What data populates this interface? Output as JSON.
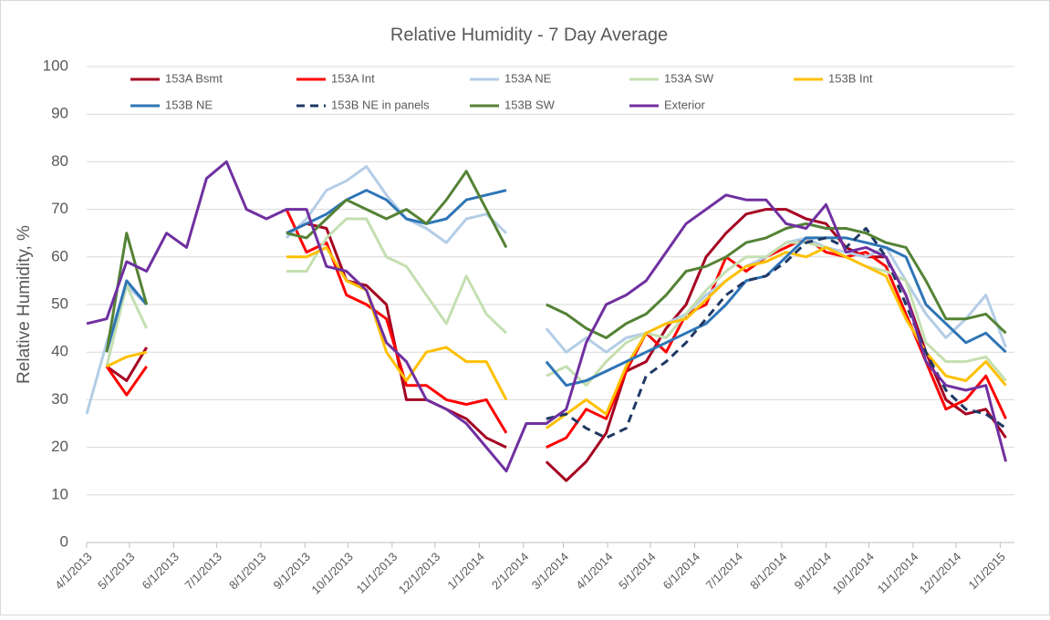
{
  "chart_data": {
    "type": "line",
    "title": "Relative Humidity - 7 Day Average",
    "ylabel": "Relative Humidity, %",
    "xlim": [
      "4/1/2013",
      "1/11/2015"
    ],
    "xticks": [
      "4/1/2013",
      "5/1/2013",
      "6/1/2013",
      "7/1/2013",
      "8/1/2013",
      "9/1/2013",
      "10/1/2013",
      "11/1/2013",
      "12/1/2013",
      "1/1/2014",
      "2/1/2014",
      "3/1/2014",
      "4/1/2014",
      "5/1/2014",
      "6/1/2014",
      "7/1/2014",
      "8/1/2014",
      "9/1/2014",
      "10/1/2014",
      "11/1/2014",
      "12/1/2014",
      "1/1/2015"
    ],
    "ylim": [
      0,
      100
    ],
    "yticks": [
      0,
      10,
      20,
      30,
      40,
      50,
      60,
      70,
      80,
      90,
      100
    ],
    "grid": true,
    "legend": "top",
    "x": [
      "4/1/2013",
      "4/15/2013",
      "4/29/2013",
      "5/13/2013",
      "5/27/2013",
      "6/10/2013",
      "6/24/2013",
      "7/8/2013",
      "7/22/2013",
      "8/5/2013",
      "8/19/2013",
      "9/2/2013",
      "9/16/2013",
      "9/30/2013",
      "10/14/2013",
      "10/28/2013",
      "11/11/2013",
      "11/25/2013",
      "12/9/2013",
      "12/23/2013",
      "1/6/2014",
      "1/20/2014",
      "2/3/2014",
      "2/17/2014",
      "3/3/2014",
      "3/17/2014",
      "3/31/2014",
      "4/14/2014",
      "4/28/2014",
      "5/12/2014",
      "5/26/2014",
      "6/9/2014",
      "6/23/2014",
      "7/7/2014",
      "7/21/2014",
      "8/4/2014",
      "8/18/2014",
      "9/1/2014",
      "9/15/2014",
      "9/29/2014",
      "10/13/2014",
      "10/27/2014",
      "11/10/2014",
      "11/24/2014",
      "12/8/2014",
      "12/22/2014",
      "1/5/2015"
    ],
    "series": [
      {
        "name": "153A Bsmt",
        "color": "#a50021",
        "values": [
          null,
          37,
          34,
          41,
          null,
          null,
          null,
          null,
          null,
          null,
          65,
          67,
          66,
          55,
          54,
          50,
          30,
          30,
          28,
          26,
          22,
          20,
          null,
          17,
          13,
          17,
          23,
          36,
          38,
          45,
          50,
          60,
          65,
          69,
          70,
          70,
          68,
          67,
          62,
          60,
          60,
          52,
          40,
          30,
          27,
          28,
          22
        ]
      },
      {
        "name": "153A Int",
        "color": "#ff0000",
        "values": [
          null,
          37,
          31,
          37,
          null,
          null,
          null,
          null,
          null,
          null,
          70,
          61,
          63,
          52,
          50,
          47,
          33,
          33,
          30,
          29,
          30,
          23,
          null,
          20,
          22,
          28,
          26,
          36,
          44,
          40,
          48,
          50,
          60,
          57,
          60,
          62,
          64,
          61,
          60,
          61,
          58,
          48,
          38,
          28,
          30,
          35,
          26
        ]
      },
      {
        "name": "153A NE",
        "color": "#b4cde6",
        "values": [
          27,
          42,
          54,
          50,
          null,
          null,
          null,
          null,
          null,
          null,
          64,
          68,
          74,
          76,
          79,
          73,
          68,
          66,
          63,
          68,
          69,
          65,
          null,
          45,
          40,
          43,
          40,
          43,
          44,
          46,
          48,
          52,
          55,
          58,
          60,
          63,
          64,
          62,
          61,
          60,
          62,
          55,
          48,
          43,
          47,
          52,
          41
        ]
      },
      {
        "name": "153A SW",
        "color": "#c4dfb0",
        "values": [
          null,
          37,
          54,
          45,
          null,
          null,
          null,
          null,
          null,
          null,
          57,
          57,
          64,
          68,
          68,
          60,
          58,
          52,
          46,
          56,
          48,
          44,
          null,
          35,
          37,
          33,
          38,
          42,
          44,
          43,
          48,
          53,
          57,
          60,
          60,
          63,
          63,
          62,
          60,
          58,
          57,
          55,
          42,
          38,
          38,
          39,
          34
        ]
      },
      {
        "name": "153B Int",
        "color": "#ffc000",
        "values": [
          null,
          37,
          39,
          40,
          null,
          null,
          null,
          null,
          null,
          null,
          60,
          60,
          62,
          55,
          53,
          40,
          34,
          40,
          41,
          38,
          38,
          30,
          null,
          24,
          27,
          30,
          27,
          37,
          44,
          46,
          47,
          51,
          55,
          58,
          59,
          61,
          60,
          62,
          60,
          58,
          56,
          47,
          40,
          35,
          34,
          38,
          33
        ]
      },
      {
        "name": "153B NE",
        "color": "#2e75b6",
        "values": [
          null,
          40,
          55,
          50,
          null,
          null,
          null,
          null,
          null,
          null,
          65,
          67,
          69,
          72,
          74,
          72,
          68,
          67,
          68,
          72,
          73,
          74,
          null,
          38,
          33,
          34,
          36,
          38,
          40,
          42,
          44,
          46,
          50,
          55,
          56,
          60,
          64,
          64,
          64,
          63,
          62,
          60,
          50,
          46,
          42,
          44,
          40
        ]
      },
      {
        "name": "153B NE in panels",
        "color": "#1f3864",
        "dashed": true,
        "values": [
          null,
          null,
          null,
          null,
          null,
          null,
          null,
          null,
          null,
          null,
          null,
          null,
          null,
          null,
          null,
          null,
          null,
          null,
          null,
          null,
          null,
          null,
          null,
          26,
          27,
          24,
          22,
          24,
          35,
          38,
          42,
          47,
          52,
          55,
          56,
          59,
          63,
          64,
          62,
          66,
          60,
          50,
          40,
          32,
          28,
          27,
          24
        ]
      },
      {
        "name": "153B SW",
        "color": "#548235",
        "values": [
          null,
          40,
          65,
          50,
          null,
          null,
          null,
          null,
          null,
          null,
          65,
          64,
          68,
          72,
          70,
          68,
          70,
          67,
          72,
          78,
          70,
          62,
          null,
          50,
          48,
          45,
          43,
          46,
          48,
          52,
          57,
          58,
          60,
          63,
          64,
          66,
          67,
          66,
          66,
          65,
          63,
          62,
          55,
          47,
          47,
          48,
          44
        ]
      },
      {
        "name": "Exterior",
        "color": "#7030a0",
        "values": [
          46,
          47,
          59,
          57,
          65,
          62,
          76.5,
          80,
          70,
          68,
          70,
          70,
          58,
          57,
          53,
          42,
          38,
          30,
          28,
          25,
          20,
          15,
          25,
          25,
          28,
          42,
          50,
          52,
          55,
          61,
          67,
          70,
          73,
          72,
          72,
          67,
          66,
          71,
          61,
          62,
          60,
          52,
          38,
          33,
          32,
          33,
          17
        ]
      }
    ]
  }
}
